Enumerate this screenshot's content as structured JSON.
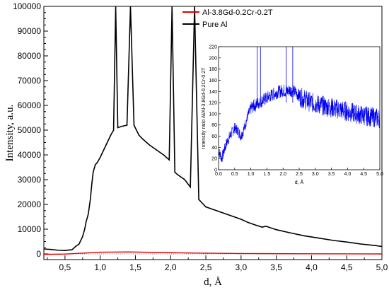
{
  "chart_data": [
    {
      "type": "line",
      "xlabel": "d, Å",
      "ylabel": "Intensity, a.u.",
      "xlim": [
        0.2,
        5.0
      ],
      "ylim": [
        0,
        100000
      ],
      "x_ticks": [
        "0,5",
        "1,0",
        "1,5",
        "2,0",
        "2,5",
        "3,0",
        "3,5",
        "4,0",
        "4,5",
        "5,0"
      ],
      "y_ticks": [
        "0",
        "10000",
        "20000",
        "30000",
        "40000",
        "50000",
        "60000",
        "70000",
        "80000",
        "90000",
        "100000"
      ],
      "legend_position": "top-right",
      "series": [
        {
          "name": "Al-3.8Gd-0.2Cr-0.2T",
          "color": "#e00000",
          "points": [
            [
              0.2,
              -200
            ],
            [
              0.5,
              -50
            ],
            [
              1.0,
              700
            ],
            [
              1.4,
              800
            ],
            [
              2.0,
              500
            ],
            [
              2.5,
              300
            ],
            [
              3.0,
              150
            ],
            [
              4.0,
              50
            ],
            [
              5.0,
              0
            ]
          ]
        },
        {
          "name": "Pure Al",
          "color": "#000000",
          "points": [
            [
              0.2,
              2000
            ],
            [
              0.3,
              1800
            ],
            [
              0.4,
              1500
            ],
            [
              0.5,
              1400
            ],
            [
              0.6,
              1700
            ],
            [
              0.65,
              3000
            ],
            [
              0.7,
              4000
            ],
            [
              0.75,
              7000
            ],
            [
              0.78,
              10000
            ],
            [
              0.8,
              13000
            ],
            [
              0.83,
              16000
            ],
            [
              0.86,
              22000
            ],
            [
              0.88,
              28000
            ],
            [
              0.9,
              33000
            ],
            [
              0.93,
              36000
            ],
            [
              0.96,
              37000
            ],
            [
              1.0,
              39000
            ],
            [
              1.05,
              42000
            ],
            [
              1.1,
              45000
            ],
            [
              1.15,
              48000
            ],
            [
              1.19,
              50000
            ],
            [
              1.22,
              100000
            ],
            [
              1.25,
              51000
            ],
            [
              1.3,
              51500
            ],
            [
              1.38,
              52000
            ],
            [
              1.43,
              100000
            ],
            [
              1.48,
              52000
            ],
            [
              1.55,
              48000
            ],
            [
              1.6,
              46500
            ],
            [
              1.7,
              44000
            ],
            [
              1.8,
              42000
            ],
            [
              1.9,
              40000
            ],
            [
              1.98,
              38000
            ],
            [
              2.02,
              100000
            ],
            [
              2.06,
              33000
            ],
            [
              2.1,
              32000
            ],
            [
              2.2,
              30000
            ],
            [
              2.28,
              27000
            ],
            [
              2.34,
              100000
            ],
            [
              2.4,
              22000
            ],
            [
              2.5,
              19000
            ],
            [
              2.6,
              18000
            ],
            [
              2.7,
              17000
            ],
            [
              2.8,
              16000
            ],
            [
              2.9,
              15000
            ],
            [
              3.0,
              14000
            ],
            [
              3.1,
              12700
            ],
            [
              3.2,
              11700
            ],
            [
              3.3,
              10800
            ],
            [
              3.35,
              11200
            ],
            [
              3.5,
              9800
            ],
            [
              3.7,
              8500
            ],
            [
              3.9,
              7300
            ],
            [
              4.1,
              6400
            ],
            [
              4.3,
              5500
            ],
            [
              4.5,
              4800
            ],
            [
              4.7,
              4000
            ],
            [
              4.9,
              3400
            ],
            [
              5.0,
              3000
            ]
          ]
        }
      ]
    },
    {
      "type": "line",
      "xlabel": "d, Å",
      "ylabel": "Intensity ratio Al/Al-3.8Gd-0.2Cr-0.2T",
      "xlim": [
        0.0,
        5.0
      ],
      "ylim": [
        0,
        220
      ],
      "x_ticks": [
        "0.0",
        "0.5",
        "1.0",
        "1.5",
        "2.0",
        "2.5",
        "3.0",
        "3.5",
        "4.0",
        "4.5",
        "5.0"
      ],
      "y_ticks": [
        "0",
        "20",
        "40",
        "60",
        "80",
        "100",
        "120",
        "140",
        "160",
        "180",
        "200",
        "220"
      ],
      "series": [
        {
          "color": "#0000ee",
          "points": [
            [
              0.0,
              35
            ],
            [
              0.1,
              20
            ],
            [
              0.2,
              40
            ],
            [
              0.3,
              55
            ],
            [
              0.4,
              65
            ],
            [
              0.5,
              75
            ],
            [
              0.6,
              70
            ],
            [
              0.7,
              60
            ],
            [
              0.8,
              75
            ],
            [
              0.9,
              95
            ],
            [
              1.0,
              110
            ],
            [
              1.2,
              118
            ],
            [
              1.3,
              122
            ],
            [
              1.4,
              125
            ],
            [
              1.5,
              128
            ],
            [
              1.6,
              132
            ],
            [
              1.7,
              135
            ],
            [
              1.8,
              138
            ],
            [
              1.9,
              140
            ],
            [
              2.0,
              142
            ],
            [
              2.1,
              140
            ],
            [
              2.2,
              142
            ],
            [
              2.3,
              141
            ],
            [
              2.4,
              138
            ],
            [
              2.5,
              132
            ],
            [
              2.6,
              128
            ],
            [
              2.7,
              125
            ],
            [
              2.8,
              122
            ],
            [
              2.9,
              120
            ],
            [
              3.0,
              118
            ],
            [
              3.2,
              115
            ],
            [
              3.4,
              112
            ],
            [
              3.6,
              110
            ],
            [
              3.8,
              107
            ],
            [
              4.0,
              104
            ],
            [
              4.2,
              101
            ],
            [
              4.4,
              98
            ],
            [
              4.6,
              96
            ],
            [
              4.8,
              94
            ],
            [
              5.0,
              92
            ]
          ],
          "spikes": [
            [
              1.2,
              220
            ],
            [
              1.3,
              220
            ],
            [
              2.1,
              220
            ],
            [
              2.3,
              220
            ]
          ]
        }
      ]
    }
  ]
}
